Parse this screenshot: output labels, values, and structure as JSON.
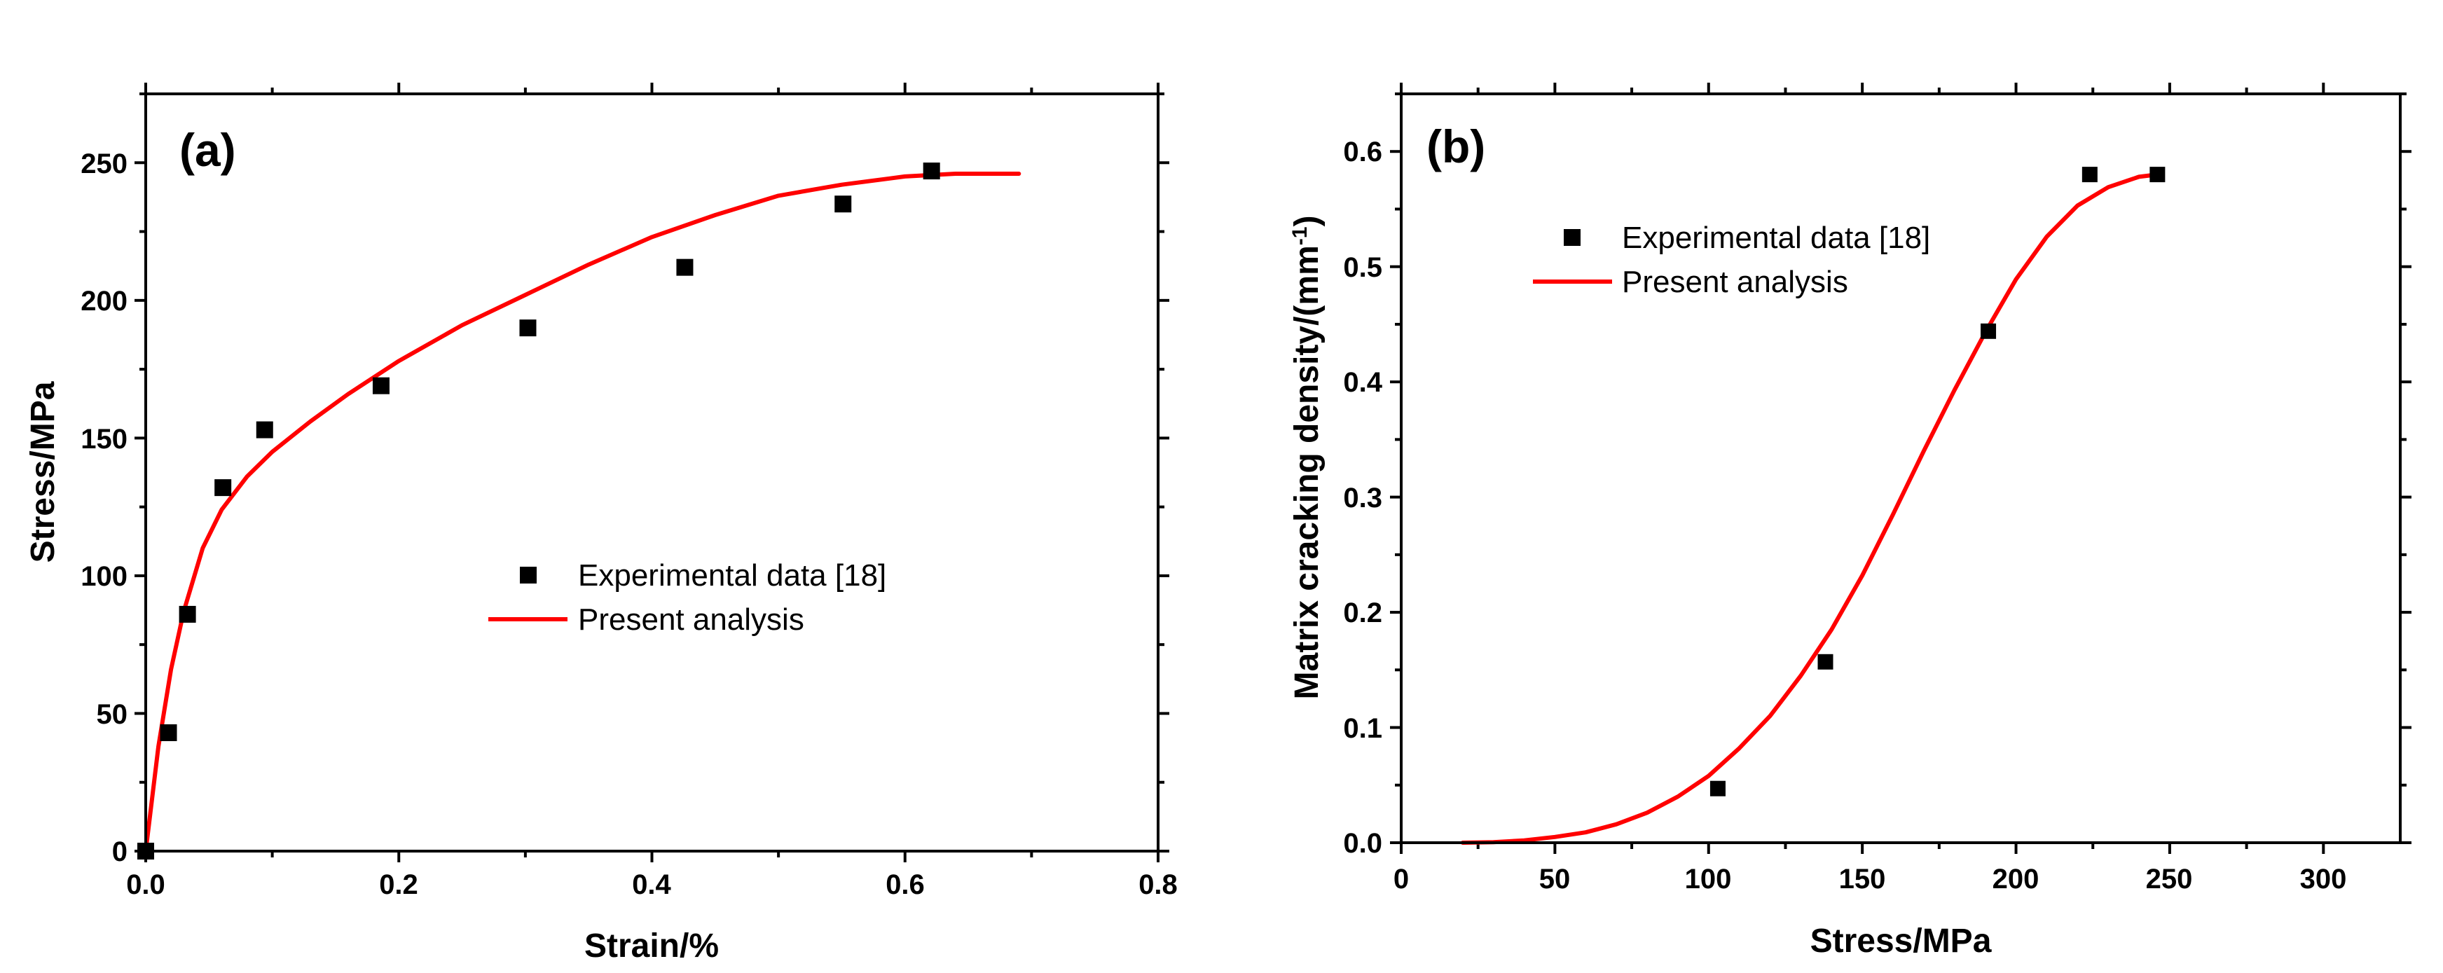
{
  "colors": {
    "experimental": "#000000",
    "model": "#ff0000",
    "axis": "#000000"
  },
  "chart_data": [
    {
      "type": "scatter",
      "panel": "(a)",
      "xlabel": "Strain/%",
      "ylabel": "Stress/MPa",
      "xlim": [
        0.0,
        0.8
      ],
      "ylim": [
        0,
        275
      ],
      "xticks": [
        0.0,
        0.2,
        0.4,
        0.6,
        0.8
      ],
      "xtick_labels": [
        "0.0",
        "0.2",
        "0.4",
        "0.6",
        "0.8"
      ],
      "yticks": [
        0,
        50,
        100,
        150,
        200,
        250
      ],
      "ytick_labels": [
        "0",
        "50",
        "100",
        "150",
        "200",
        "250"
      ],
      "legend_position": "center-right",
      "series": [
        {
          "name": "Experimental data [18]",
          "kind": "marker",
          "x": [
            0.0,
            0.018,
            0.033,
            0.061,
            0.094,
            0.186,
            0.302,
            0.426,
            0.551,
            0.621
          ],
          "y": [
            0,
            43,
            86,
            132,
            153,
            169,
            190,
            212,
            235,
            247
          ]
        },
        {
          "name": "Present analysis",
          "kind": "line",
          "x": [
            0.0,
            0.01,
            0.02,
            0.03,
            0.045,
            0.06,
            0.08,
            0.1,
            0.13,
            0.16,
            0.2,
            0.25,
            0.3,
            0.35,
            0.4,
            0.45,
            0.5,
            0.55,
            0.6,
            0.64,
            0.69
          ],
          "y": [
            0,
            38,
            66,
            87,
            110,
            124,
            136,
            145,
            156,
            166,
            178,
            191,
            202,
            213,
            223,
            231,
            238,
            242,
            245,
            246,
            246
          ]
        }
      ]
    },
    {
      "type": "scatter",
      "panel": "(b)",
      "xlabel": "Stress/MPa",
      "ylabel": "Matrix cracking density/(mm",
      "ylabel_sup": "-1",
      "ylabel_close": ")",
      "xlim": [
        0,
        325
      ],
      "ylim": [
        0.0,
        0.65
      ],
      "xticks": [
        0,
        50,
        100,
        150,
        200,
        250,
        300
      ],
      "xtick_labels": [
        "0",
        "50",
        "100",
        "150",
        "200",
        "250",
        "300"
      ],
      "yticks": [
        0.0,
        0.1,
        0.2,
        0.3,
        0.4,
        0.5,
        0.6
      ],
      "ytick_labels": [
        "0.0",
        "0.1",
        "0.2",
        "0.3",
        "0.4",
        "0.5",
        "0.6"
      ],
      "legend_position": "top-left",
      "series": [
        {
          "name": "Experimental data [18]",
          "kind": "marker",
          "x": [
            103,
            138,
            191,
            224,
            246
          ],
          "y": [
            0.047,
            0.157,
            0.444,
            0.58,
            0.58
          ]
        },
        {
          "name": "Present analysis",
          "kind": "line",
          "x": [
            20,
            30,
            40,
            50,
            60,
            70,
            80,
            90,
            100,
            110,
            120,
            130,
            140,
            150,
            160,
            170,
            180,
            190,
            200,
            210,
            220,
            230,
            240,
            246
          ],
          "y": [
            0.0,
            0.0005,
            0.002,
            0.005,
            0.009,
            0.016,
            0.026,
            0.04,
            0.058,
            0.082,
            0.11,
            0.145,
            0.185,
            0.232,
            0.285,
            0.34,
            0.393,
            0.443,
            0.489,
            0.526,
            0.553,
            0.569,
            0.578,
            0.58
          ]
        }
      ]
    }
  ]
}
